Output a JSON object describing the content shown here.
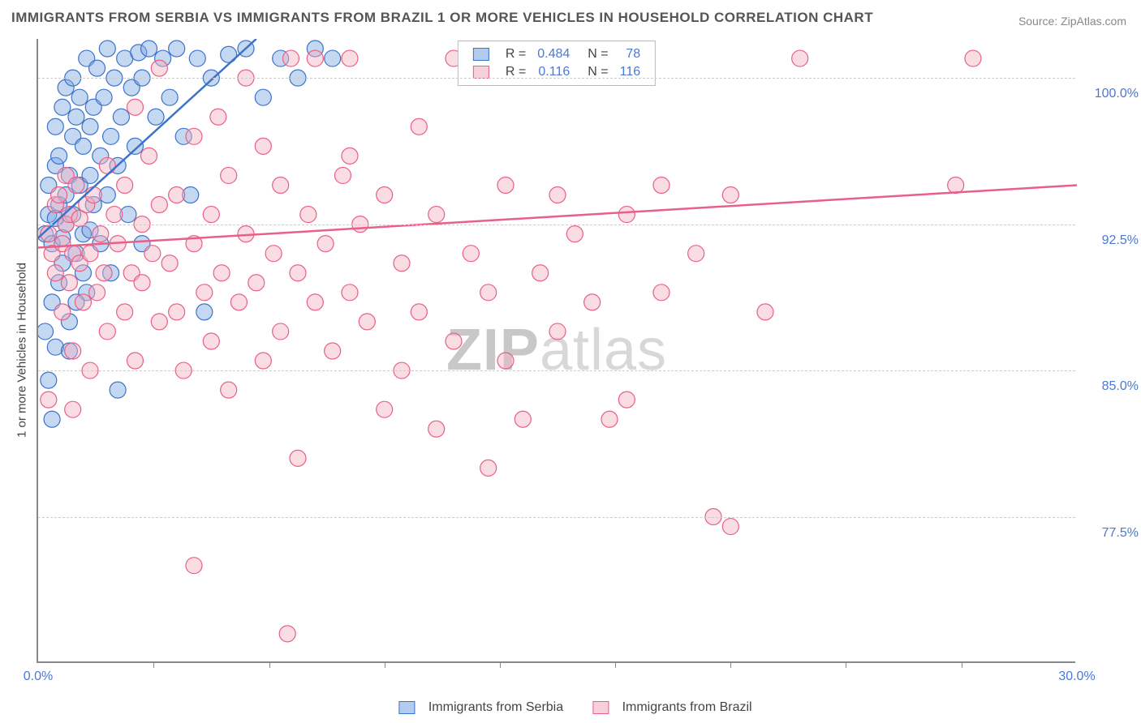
{
  "title": "IMMIGRANTS FROM SERBIA VS IMMIGRANTS FROM BRAZIL 1 OR MORE VEHICLES IN HOUSEHOLD CORRELATION CHART",
  "source": "Source: ZipAtlas.com",
  "watermark": {
    "part1": "ZIP",
    "part2": "atlas"
  },
  "chart": {
    "type": "scatter",
    "background_color": "#ffffff",
    "grid_color": "#cccccc",
    "axis_color": "#888888",
    "ylabel": "1 or more Vehicles in Household",
    "label_color": "#444444",
    "tick_label_color": "#4a79d6",
    "tick_fontsize": 16,
    "xlim": [
      0.0,
      30.0
    ],
    "ylim": [
      70.0,
      102.0
    ],
    "xtick_values": [
      0.0,
      30.0
    ],
    "xtick_labels": [
      "0.0%",
      "30.0%"
    ],
    "xtick_minor": [
      3.33,
      6.67,
      10.0,
      13.33,
      16.67,
      20.0,
      23.33,
      26.67
    ],
    "ytick_values": [
      77.5,
      85.0,
      92.5,
      100.0
    ],
    "ytick_labels": [
      "77.5%",
      "85.0%",
      "92.5%",
      "100.0%"
    ],
    "marker_radius": 10,
    "marker_opacity": 0.45,
    "trend_line_width": 2.5,
    "series": [
      {
        "name": "Immigrants from Serbia",
        "fill_color": "#7ea9e3",
        "stroke_color": "#3d72c9",
        "R": "0.484",
        "N": "78",
        "trend": {
          "x1": 0.0,
          "y1": 91.8,
          "x2": 6.3,
          "y2": 102.0
        },
        "points": [
          [
            0.2,
            92.0
          ],
          [
            0.3,
            93.0
          ],
          [
            0.3,
            94.5
          ],
          [
            0.4,
            88.5
          ],
          [
            0.4,
            91.5
          ],
          [
            0.5,
            95.5
          ],
          [
            0.5,
            97.5
          ],
          [
            0.5,
            86.2
          ],
          [
            0.6,
            93.5
          ],
          [
            0.6,
            96.0
          ],
          [
            0.7,
            90.5
          ],
          [
            0.7,
            98.5
          ],
          [
            0.8,
            92.5
          ],
          [
            0.8,
            94.0
          ],
          [
            0.8,
            99.5
          ],
          [
            0.9,
            87.5
          ],
          [
            0.9,
            95.0
          ],
          [
            1.0,
            93.0
          ],
          [
            1.0,
            97.0
          ],
          [
            1.0,
            100.0
          ],
          [
            1.1,
            91.0
          ],
          [
            1.1,
            98.0
          ],
          [
            1.2,
            94.5
          ],
          [
            1.2,
            99.0
          ],
          [
            1.3,
            92.0
          ],
          [
            1.3,
            96.5
          ],
          [
            1.4,
            101.0
          ],
          [
            1.4,
            89.0
          ],
          [
            1.5,
            97.5
          ],
          [
            1.5,
            95.0
          ],
          [
            1.6,
            98.5
          ],
          [
            1.6,
            93.5
          ],
          [
            1.7,
            100.5
          ],
          [
            1.8,
            91.5
          ],
          [
            1.8,
            96.0
          ],
          [
            1.9,
            99.0
          ],
          [
            2.0,
            94.0
          ],
          [
            2.0,
            101.5
          ],
          [
            2.1,
            97.0
          ],
          [
            2.2,
            100.0
          ],
          [
            2.3,
            95.5
          ],
          [
            2.3,
            84.0
          ],
          [
            2.4,
            98.0
          ],
          [
            2.5,
            101.0
          ],
          [
            2.6,
            93.0
          ],
          [
            2.7,
            99.5
          ],
          [
            2.8,
            96.5
          ],
          [
            2.9,
            101.3
          ],
          [
            3.0,
            100.0
          ],
          [
            3.2,
            101.5
          ],
          [
            3.4,
            98.0
          ],
          [
            3.6,
            101.0
          ],
          [
            3.8,
            99.0
          ],
          [
            4.0,
            101.5
          ],
          [
            4.2,
            97.0
          ],
          [
            4.4,
            94.0
          ],
          [
            4.6,
            101.0
          ],
          [
            4.8,
            88.0
          ],
          [
            5.0,
            100.0
          ],
          [
            5.5,
            101.2
          ],
          [
            6.0,
            101.5
          ],
          [
            6.5,
            99.0
          ],
          [
            7.0,
            101.0
          ],
          [
            7.5,
            100.0
          ],
          [
            8.0,
            101.5
          ],
          [
            8.5,
            101.0
          ],
          [
            0.3,
            84.5
          ],
          [
            0.4,
            82.5
          ],
          [
            0.5,
            92.8
          ],
          [
            0.9,
            86.0
          ],
          [
            1.1,
            88.5
          ],
          [
            0.6,
            89.5
          ],
          [
            0.7,
            91.8
          ],
          [
            0.2,
            87.0
          ],
          [
            1.3,
            90.0
          ],
          [
            1.5,
            92.2
          ],
          [
            2.1,
            90.0
          ],
          [
            3.0,
            91.5
          ]
        ]
      },
      {
        "name": "Immigrants from Brazil",
        "fill_color": "#f4b1c1",
        "stroke_color": "#e85f87",
        "R": "0.116",
        "N": "116",
        "trend": {
          "x1": 0.0,
          "y1": 91.3,
          "x2": 30.0,
          "y2": 94.5
        },
        "points": [
          [
            0.3,
            92.0
          ],
          [
            0.4,
            91.0
          ],
          [
            0.5,
            93.5
          ],
          [
            0.5,
            90.0
          ],
          [
            0.6,
            94.0
          ],
          [
            0.7,
            91.5
          ],
          [
            0.7,
            88.0
          ],
          [
            0.8,
            92.5
          ],
          [
            0.8,
            95.0
          ],
          [
            0.9,
            89.5
          ],
          [
            0.9,
            93.0
          ],
          [
            1.0,
            91.0
          ],
          [
            1.0,
            86.0
          ],
          [
            1.1,
            94.5
          ],
          [
            1.2,
            90.5
          ],
          [
            1.2,
            92.8
          ],
          [
            1.3,
            88.5
          ],
          [
            1.4,
            93.5
          ],
          [
            1.5,
            91.0
          ],
          [
            1.5,
            85.0
          ],
          [
            1.6,
            94.0
          ],
          [
            1.7,
            89.0
          ],
          [
            1.8,
            92.0
          ],
          [
            1.9,
            90.0
          ],
          [
            2.0,
            95.5
          ],
          [
            2.0,
            87.0
          ],
          [
            2.2,
            93.0
          ],
          [
            2.3,
            91.5
          ],
          [
            2.5,
            88.0
          ],
          [
            2.5,
            94.5
          ],
          [
            2.7,
            90.0
          ],
          [
            2.8,
            85.5
          ],
          [
            3.0,
            92.5
          ],
          [
            3.0,
            89.5
          ],
          [
            3.2,
            96.0
          ],
          [
            3.3,
            91.0
          ],
          [
            3.5,
            87.5
          ],
          [
            3.5,
            93.5
          ],
          [
            3.8,
            90.5
          ],
          [
            4.0,
            94.0
          ],
          [
            4.0,
            88.0
          ],
          [
            4.2,
            85.0
          ],
          [
            4.5,
            91.5
          ],
          [
            4.5,
            97.0
          ],
          [
            4.8,
            89.0
          ],
          [
            5.0,
            93.0
          ],
          [
            5.0,
            86.5
          ],
          [
            5.3,
            90.0
          ],
          [
            5.5,
            95.0
          ],
          [
            5.5,
            84.0
          ],
          [
            5.8,
            88.5
          ],
          [
            6.0,
            92.0
          ],
          [
            6.0,
            100.0
          ],
          [
            6.3,
            89.5
          ],
          [
            6.5,
            85.5
          ],
          [
            6.8,
            91.0
          ],
          [
            7.0,
            94.5
          ],
          [
            7.0,
            87.0
          ],
          [
            7.3,
            101.0
          ],
          [
            7.5,
            90.0
          ],
          [
            7.5,
            80.5
          ],
          [
            7.8,
            93.0
          ],
          [
            8.0,
            88.5
          ],
          [
            8.0,
            101.0
          ],
          [
            8.3,
            91.5
          ],
          [
            8.5,
            86.0
          ],
          [
            8.8,
            95.0
          ],
          [
            9.0,
            89.0
          ],
          [
            9.0,
            101.0
          ],
          [
            9.3,
            92.5
          ],
          [
            9.5,
            87.5
          ],
          [
            10.0,
            94.0
          ],
          [
            10.0,
            83.0
          ],
          [
            10.5,
            90.5
          ],
          [
            11.0,
            97.5
          ],
          [
            11.0,
            88.0
          ],
          [
            11.5,
            93.0
          ],
          [
            12.0,
            86.5
          ],
          [
            12.0,
            101.0
          ],
          [
            12.5,
            91.0
          ],
          [
            13.0,
            89.0
          ],
          [
            13.0,
            80.0
          ],
          [
            13.5,
            94.5
          ],
          [
            14.0,
            82.5
          ],
          [
            14.0,
            101.0
          ],
          [
            14.5,
            90.0
          ],
          [
            15.0,
            87.0
          ],
          [
            15.0,
            94.0
          ],
          [
            15.5,
            92.0
          ],
          [
            16.0,
            88.5
          ],
          [
            16.0,
            101.0
          ],
          [
            17.0,
            93.0
          ],
          [
            17.0,
            83.5
          ],
          [
            18.0,
            94.5
          ],
          [
            18.0,
            89.0
          ],
          [
            19.0,
            91.0
          ],
          [
            20.0,
            77.0
          ],
          [
            20.0,
            94.0
          ],
          [
            21.0,
            88.0
          ],
          [
            22.0,
            101.0
          ],
          [
            7.2,
            71.5
          ],
          [
            4.5,
            75.0
          ],
          [
            1.0,
            83.0
          ],
          [
            0.3,
            83.5
          ],
          [
            2.8,
            98.5
          ],
          [
            3.5,
            100.5
          ],
          [
            5.2,
            98.0
          ],
          [
            6.5,
            96.5
          ],
          [
            9.0,
            96.0
          ],
          [
            10.5,
            85.0
          ],
          [
            11.5,
            82.0
          ],
          [
            13.5,
            85.5
          ],
          [
            16.5,
            82.5
          ],
          [
            27.0,
            101.0
          ],
          [
            26.5,
            94.5
          ],
          [
            19.5,
            77.5
          ]
        ]
      }
    ]
  },
  "legend_top": {
    "r_label": "R =",
    "n_label": "N =",
    "value_color": "#4a79d6"
  },
  "legend_bottom": {
    "items": [
      "Immigrants from Serbia",
      "Immigrants from Brazil"
    ]
  }
}
